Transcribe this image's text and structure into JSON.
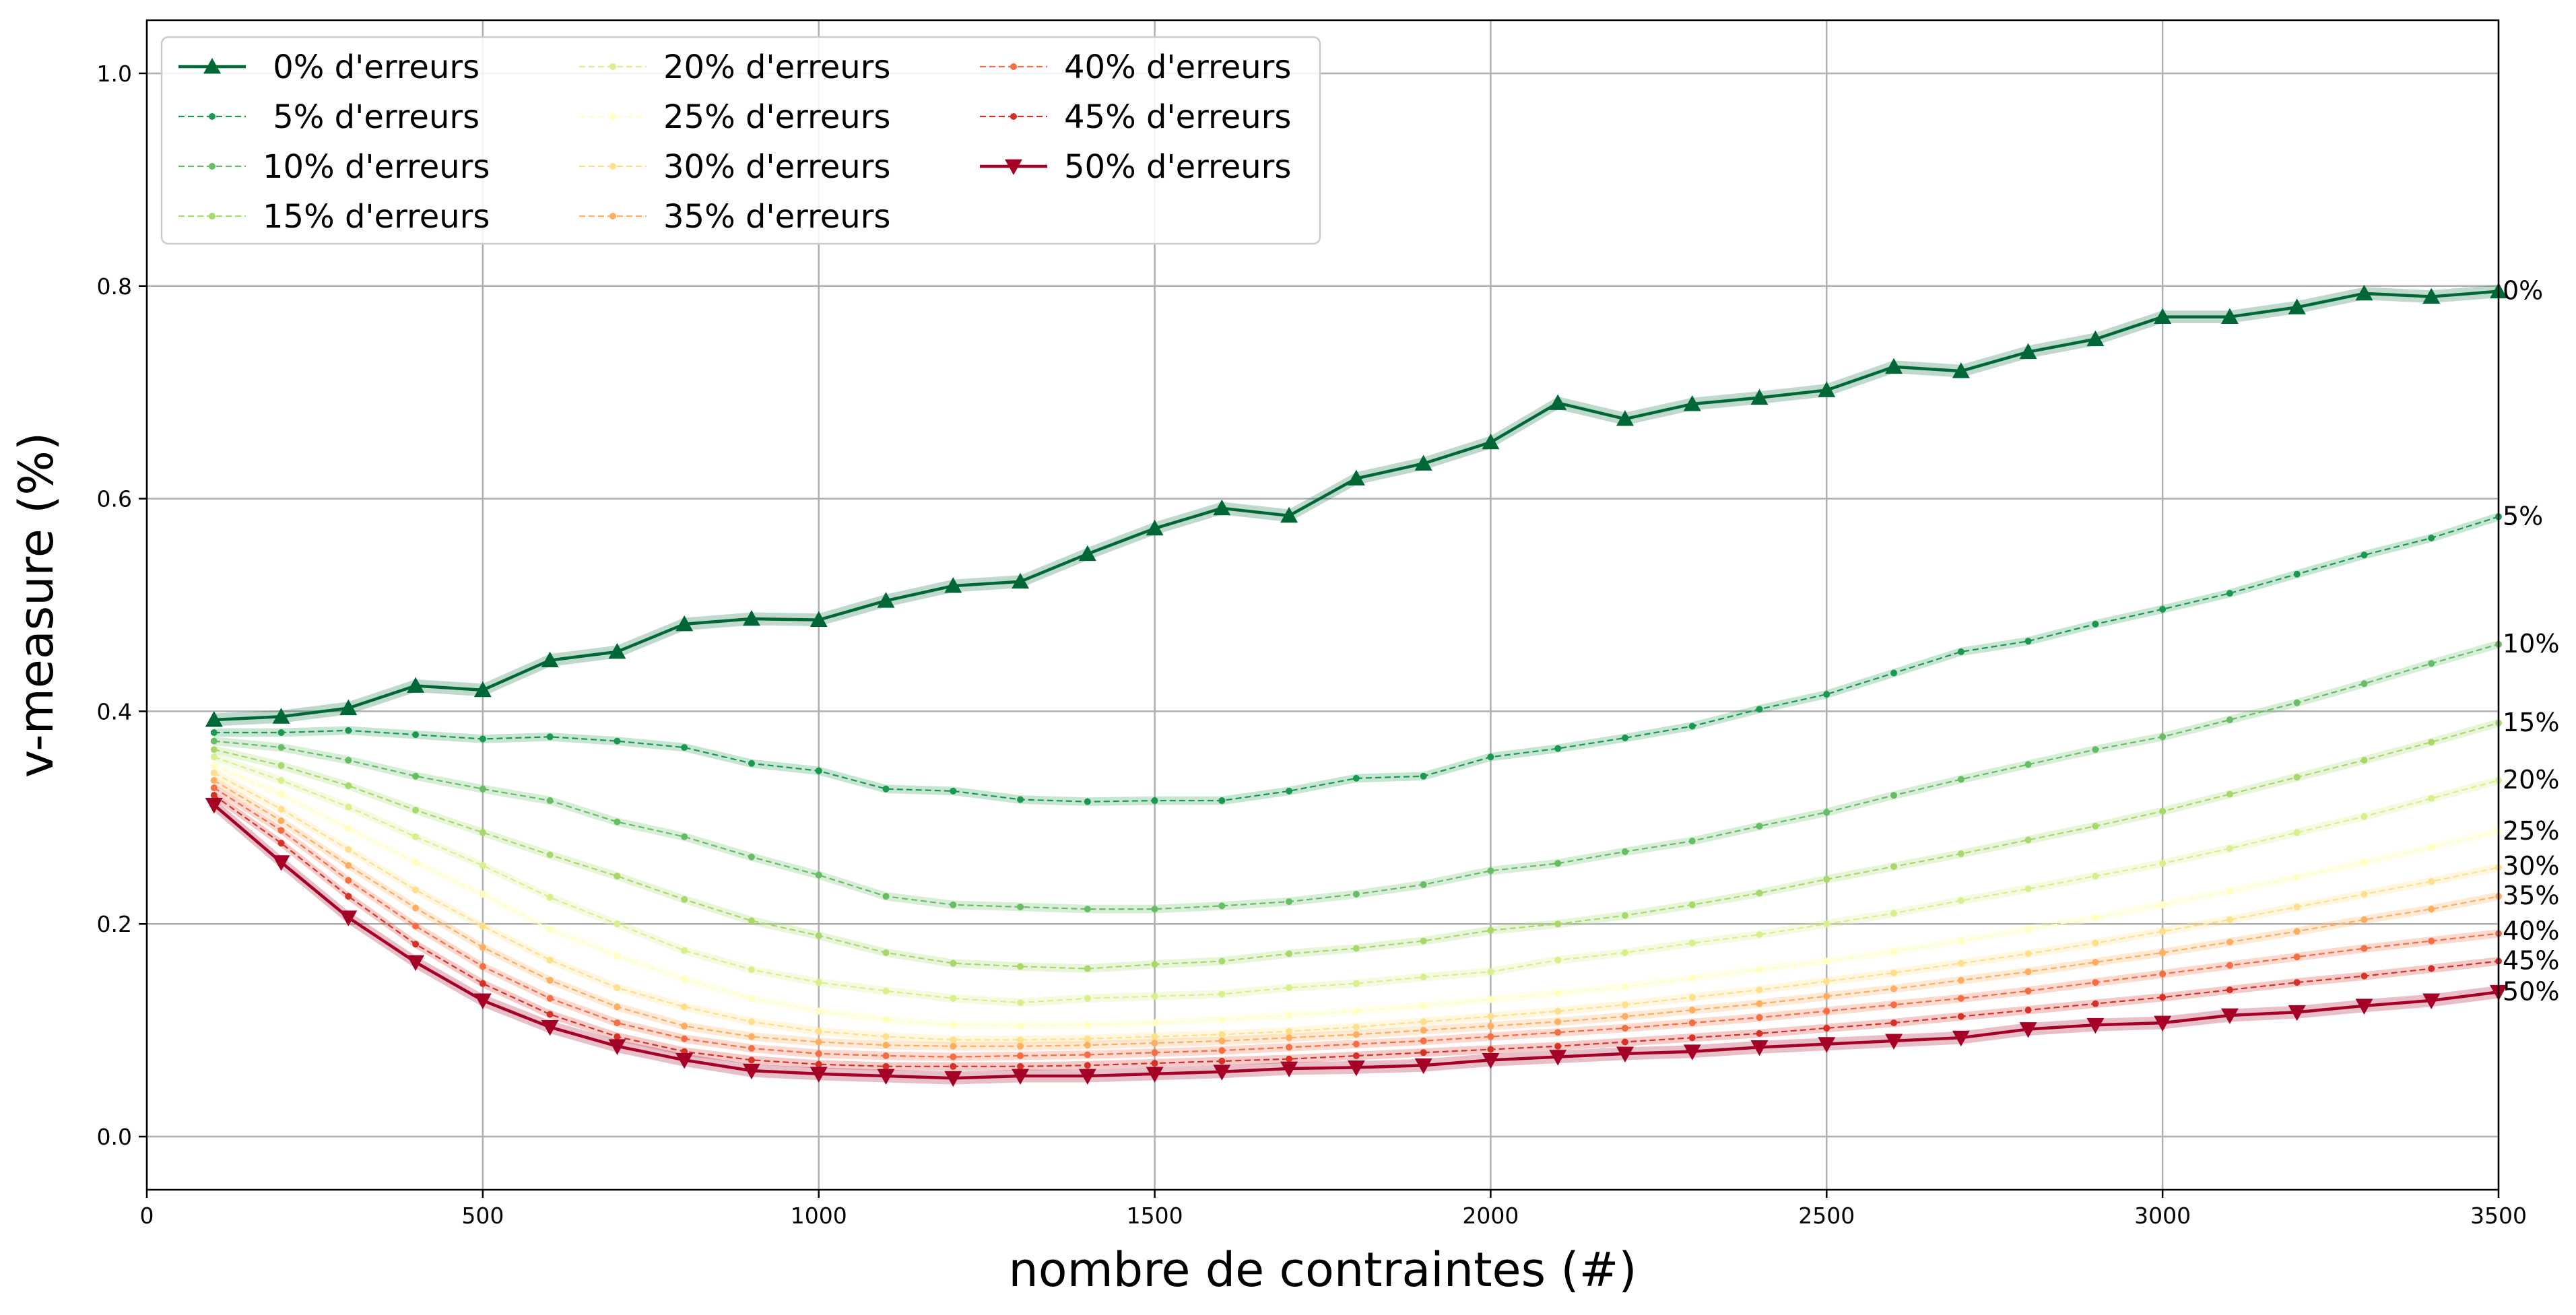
{
  "chart_data": {
    "type": "line",
    "xlabel": "nombre de contraintes (#)",
    "ylabel": "v-measure (%)",
    "xlim": [
      0,
      3500
    ],
    "ylim": [
      -0.05,
      1.05
    ],
    "xticks": [
      "0",
      "500",
      "1000",
      "1500",
      "2000",
      "2500",
      "3000",
      "3500"
    ],
    "yticks": [
      "0.0",
      "0.2",
      "0.4",
      "0.6",
      "0.8",
      "1.0"
    ],
    "grid": true,
    "legend_position": "top-left",
    "legend_columns": 3,
    "x": [
      100,
      200,
      300,
      400,
      500,
      600,
      700,
      800,
      900,
      1000,
      1100,
      1200,
      1300,
      1400,
      1500,
      1600,
      1700,
      1800,
      1900,
      2000,
      2100,
      2200,
      2300,
      2400,
      2500,
      2600,
      2700,
      2800,
      2900,
      3000,
      3100,
      3200,
      3300,
      3400,
      3500
    ],
    "series": [
      {
        "name": " 0% d'erreurs",
        "end_label": "0%",
        "color": "#006837",
        "style": "solid",
        "marker": "triangle-up",
        "values": [
          0.392,
          0.395,
          0.403,
          0.424,
          0.42,
          0.448,
          0.456,
          0.482,
          0.487,
          0.486,
          0.504,
          0.518,
          0.522,
          0.548,
          0.572,
          0.591,
          0.584,
          0.619,
          0.633,
          0.653,
          0.69,
          0.675,
          0.689,
          0.695,
          0.702,
          0.724,
          0.72,
          0.738,
          0.75,
          0.771,
          0.771,
          0.78,
          0.793,
          0.79,
          0.795
        ]
      },
      {
        "name": " 5% d'erreurs",
        "end_label": "5%",
        "color": "#1a9850",
        "style": "dashed",
        "marker": "dot",
        "values": [
          0.38,
          0.38,
          0.382,
          0.378,
          0.374,
          0.376,
          0.372,
          0.366,
          0.351,
          0.344,
          0.327,
          0.325,
          0.317,
          0.315,
          0.316,
          0.316,
          0.325,
          0.337,
          0.339,
          0.357,
          0.365,
          0.375,
          0.386,
          0.402,
          0.416,
          0.436,
          0.456,
          0.466,
          0.482,
          0.496,
          0.511,
          0.529,
          0.547,
          0.563,
          0.583
        ]
      },
      {
        "name": "10% d'erreurs",
        "end_label": "10%",
        "color": "#66bd63",
        "style": "dashed",
        "marker": "dot",
        "values": [
          0.372,
          0.366,
          0.354,
          0.339,
          0.327,
          0.316,
          0.296,
          0.282,
          0.263,
          0.246,
          0.226,
          0.218,
          0.216,
          0.214,
          0.214,
          0.217,
          0.221,
          0.228,
          0.237,
          0.25,
          0.257,
          0.268,
          0.278,
          0.292,
          0.305,
          0.321,
          0.336,
          0.35,
          0.364,
          0.376,
          0.392,
          0.408,
          0.426,
          0.445,
          0.463
        ]
      },
      {
        "name": "15% d'erreurs",
        "end_label": "15%",
        "color": "#a6d96a",
        "style": "dashed",
        "marker": "dot",
        "values": [
          0.364,
          0.349,
          0.33,
          0.307,
          0.286,
          0.265,
          0.245,
          0.223,
          0.203,
          0.189,
          0.173,
          0.163,
          0.16,
          0.158,
          0.162,
          0.165,
          0.172,
          0.177,
          0.184,
          0.194,
          0.2,
          0.208,
          0.218,
          0.229,
          0.242,
          0.254,
          0.266,
          0.279,
          0.292,
          0.306,
          0.322,
          0.338,
          0.354,
          0.371,
          0.389
        ]
      },
      {
        "name": "20% d'erreurs",
        "end_label": "20%",
        "color": "#d9ef8b",
        "style": "dashed",
        "marker": "dot",
        "values": [
          0.357,
          0.335,
          0.31,
          0.282,
          0.255,
          0.225,
          0.2,
          0.175,
          0.157,
          0.145,
          0.137,
          0.13,
          0.126,
          0.13,
          0.132,
          0.134,
          0.14,
          0.144,
          0.15,
          0.155,
          0.166,
          0.173,
          0.182,
          0.19,
          0.2,
          0.21,
          0.222,
          0.233,
          0.245,
          0.257,
          0.271,
          0.286,
          0.301,
          0.318,
          0.335
        ]
      },
      {
        "name": "25% d'erreurs",
        "end_label": "25%",
        "color": "#ffffbf",
        "style": "dashed",
        "marker": "dot",
        "values": [
          0.349,
          0.322,
          0.29,
          0.258,
          0.228,
          0.195,
          0.17,
          0.148,
          0.13,
          0.118,
          0.11,
          0.105,
          0.104,
          0.105,
          0.107,
          0.11,
          0.114,
          0.118,
          0.123,
          0.129,
          0.135,
          0.141,
          0.149,
          0.157,
          0.165,
          0.174,
          0.184,
          0.195,
          0.206,
          0.218,
          0.231,
          0.244,
          0.258,
          0.272,
          0.287
        ]
      },
      {
        "name": "30% d'erreurs",
        "end_label": "30%",
        "color": "#fee08b",
        "style": "dashed",
        "marker": "dot",
        "values": [
          0.342,
          0.308,
          0.27,
          0.232,
          0.198,
          0.166,
          0.14,
          0.122,
          0.108,
          0.099,
          0.094,
          0.091,
          0.091,
          0.092,
          0.094,
          0.096,
          0.099,
          0.103,
          0.108,
          0.113,
          0.118,
          0.124,
          0.131,
          0.138,
          0.146,
          0.154,
          0.163,
          0.172,
          0.182,
          0.193,
          0.204,
          0.216,
          0.228,
          0.24,
          0.253
        ]
      },
      {
        "name": "35% d'erreurs",
        "end_label": "35%",
        "color": "#fdae61",
        "style": "dashed",
        "marker": "dot",
        "values": [
          0.335,
          0.297,
          0.255,
          0.215,
          0.178,
          0.147,
          0.122,
          0.104,
          0.094,
          0.089,
          0.086,
          0.085,
          0.085,
          0.086,
          0.088,
          0.09,
          0.093,
          0.096,
          0.1,
          0.104,
          0.108,
          0.113,
          0.119,
          0.125,
          0.132,
          0.139,
          0.147,
          0.155,
          0.164,
          0.173,
          0.183,
          0.193,
          0.204,
          0.214,
          0.226
        ]
      },
      {
        "name": "40% d'erreurs",
        "end_label": "40%",
        "color": "#f46d43",
        "style": "dashed",
        "marker": "dot",
        "values": [
          0.328,
          0.288,
          0.241,
          0.198,
          0.16,
          0.13,
          0.107,
          0.092,
          0.083,
          0.078,
          0.076,
          0.075,
          0.076,
          0.077,
          0.079,
          0.081,
          0.084,
          0.087,
          0.09,
          0.094,
          0.098,
          0.102,
          0.107,
          0.112,
          0.118,
          0.124,
          0.13,
          0.137,
          0.145,
          0.153,
          0.161,
          0.169,
          0.177,
          0.184,
          0.191
        ]
      },
      {
        "name": "45% d'erreurs",
        "end_label": "45%",
        "color": "#d73027",
        "style": "dashed",
        "marker": "dot",
        "values": [
          0.321,
          0.276,
          0.226,
          0.181,
          0.144,
          0.115,
          0.094,
          0.08,
          0.072,
          0.068,
          0.066,
          0.066,
          0.066,
          0.067,
          0.069,
          0.071,
          0.073,
          0.076,
          0.079,
          0.082,
          0.085,
          0.089,
          0.093,
          0.097,
          0.102,
          0.107,
          0.113,
          0.119,
          0.125,
          0.131,
          0.138,
          0.145,
          0.151,
          0.158,
          0.165
        ]
      },
      {
        "name": "50% d'erreurs",
        "end_label": "50%",
        "color": "#a50026",
        "style": "solid",
        "marker": "triangle-down",
        "values": [
          0.312,
          0.258,
          0.206,
          0.164,
          0.128,
          0.103,
          0.085,
          0.072,
          0.062,
          0.059,
          0.057,
          0.055,
          0.057,
          0.057,
          0.059,
          0.061,
          0.064,
          0.065,
          0.067,
          0.072,
          0.075,
          0.078,
          0.08,
          0.084,
          0.087,
          0.09,
          0.093,
          0.101,
          0.105,
          0.107,
          0.114,
          0.117,
          0.123,
          0.128,
          0.136
        ]
      }
    ]
  }
}
